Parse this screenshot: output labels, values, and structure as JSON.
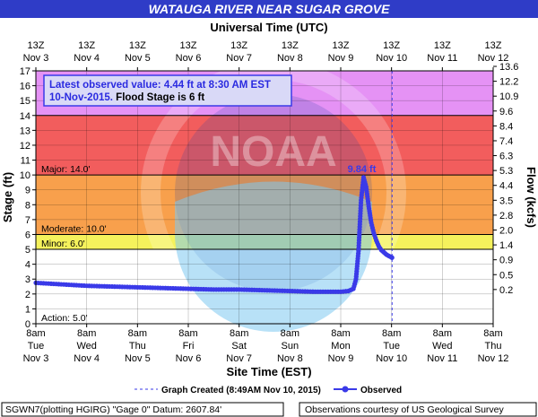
{
  "chart_data": {
    "type": "line",
    "title": "WATAUGA RIVER NEAR SUGAR GROVE",
    "top_axis_title": "Universal Time (UTC)",
    "xlabel": "Site Time (EST)",
    "ylabel": "Stage (ft)",
    "y2label": "Flow (kcfs)",
    "ylim": [
      0,
      17
    ],
    "yticks": [
      0,
      1,
      2,
      3,
      4,
      5,
      6,
      7,
      8,
      9,
      10,
      11,
      12,
      13,
      14,
      15,
      16,
      17
    ],
    "flow_ticks": [
      {
        "stage": 2.3,
        "label": "0.2"
      },
      {
        "stage": 3.3,
        "label": "0.5"
      },
      {
        "stage": 4.3,
        "label": "0.9"
      },
      {
        "stage": 5.3,
        "label": "1.4"
      },
      {
        "stage": 6.3,
        "label": "2.0"
      },
      {
        "stage": 7.3,
        "label": "2.8"
      },
      {
        "stage": 8.3,
        "label": "3.5"
      },
      {
        "stage": 9.3,
        "label": "4.4"
      },
      {
        "stage": 10.3,
        "label": "5.3"
      },
      {
        "stage": 11.3,
        "label": "6.3"
      },
      {
        "stage": 12.3,
        "label": "7.4"
      },
      {
        "stage": 13.3,
        "label": "8.4"
      },
      {
        "stage": 14.3,
        "label": "9.6"
      },
      {
        "stage": 15.3,
        "label": "10.9"
      },
      {
        "stage": 16.3,
        "label": "12.2"
      },
      {
        "stage": 17.3,
        "label": "13.6"
      }
    ],
    "days_lim": [
      0,
      9
    ],
    "x_ticks_bottom": [
      {
        "line1": "8am",
        "line2": "Tue",
        "line3": "Nov 3"
      },
      {
        "line1": "8am",
        "line2": "Wed",
        "line3": "Nov 4"
      },
      {
        "line1": "8am",
        "line2": "Thu",
        "line3": "Nov 5"
      },
      {
        "line1": "8am",
        "line2": "Fri",
        "line3": "Nov 6"
      },
      {
        "line1": "8am",
        "line2": "Sat",
        "line3": "Nov 7"
      },
      {
        "line1": "8am",
        "line2": "Sun",
        "line3": "Nov 8"
      },
      {
        "line1": "8am",
        "line2": "Mon",
        "line3": "Nov 9"
      },
      {
        "line1": "8am",
        "line2": "Tue",
        "line3": "Nov 10"
      },
      {
        "line1": "8am",
        "line2": "Wed",
        "line3": "Nov 11"
      },
      {
        "line1": "8am",
        "line2": "Thu",
        "line3": "Nov 12"
      }
    ],
    "x_ticks_top": [
      {
        "line1": "13Z",
        "line2": "Nov 3"
      },
      {
        "line1": "13Z",
        "line2": "Nov 4"
      },
      {
        "line1": "13Z",
        "line2": "Nov 5"
      },
      {
        "line1": "13Z",
        "line2": "Nov 6"
      },
      {
        "line1": "13Z",
        "line2": "Nov 7"
      },
      {
        "line1": "13Z",
        "line2": "Nov 8"
      },
      {
        "line1": "13Z",
        "line2": "Nov 9"
      },
      {
        "line1": "13Z",
        "line2": "Nov 10"
      },
      {
        "line1": "13Z",
        "line2": "Nov 11"
      },
      {
        "line1": "13Z",
        "line2": "Nov 12"
      }
    ],
    "flood_bands": [
      {
        "label": "",
        "from": 14,
        "to": 17,
        "color": "#e592f5"
      },
      {
        "label": "Major: 14.0'",
        "from": 10,
        "to": 14,
        "color": "#f25d5d"
      },
      {
        "label": "Moderate: 10.0'",
        "from": 6,
        "to": 10,
        "color": "#f8a04c"
      },
      {
        "label": "Minor: 6.0'",
        "from": 5,
        "to": 6,
        "color": "#f5f25c"
      },
      {
        "label": "Action: 5.0'",
        "from": 0,
        "to": 5,
        "color": "#ffffff"
      }
    ],
    "series": [
      {
        "name": "Observed",
        "color": "#3a3ae8",
        "x": [
          0.0,
          0.25,
          0.5,
          0.75,
          1.0,
          1.5,
          2.0,
          2.5,
          3.0,
          3.5,
          4.0,
          4.5,
          5.0,
          5.5,
          6.0,
          6.15,
          6.25,
          6.3,
          6.35,
          6.4,
          6.45,
          6.5,
          6.55,
          6.6,
          6.65,
          6.7,
          6.75,
          6.8,
          6.85,
          6.9,
          6.95,
          7.0,
          7.01
        ],
        "y": [
          2.75,
          2.7,
          2.65,
          2.6,
          2.55,
          2.5,
          2.45,
          2.4,
          2.35,
          2.3,
          2.3,
          2.25,
          2.2,
          2.15,
          2.15,
          2.2,
          2.35,
          3.0,
          4.9,
          8.3,
          9.84,
          9.2,
          7.9,
          6.8,
          6.1,
          5.6,
          5.2,
          4.95,
          4.8,
          4.65,
          4.55,
          4.47,
          4.44
        ]
      }
    ],
    "peak_label": "9.84 ft",
    "graph_created_day": 7.01,
    "info_box": {
      "line1": "Latest observed value: 4.44 ft at 8:30 AM EST",
      "line2a": "10-Nov-2015.",
      "line2b": " Flood Stage is 6 ft"
    },
    "legend": {
      "graph_created": "Graph Created (8:49AM Nov 10, 2015)",
      "observed": "Observed"
    },
    "footer": {
      "left": "SGWN7(plotting HGIRG) \"Gage 0\" Datum: 2607.84'",
      "right": "Observations courtesy of US Geological Survey"
    },
    "colors": {
      "title_bar": "#2f3cc7",
      "grid": "#000000",
      "accent": "#3a3ae8"
    },
    "watermark": "NOAA"
  }
}
